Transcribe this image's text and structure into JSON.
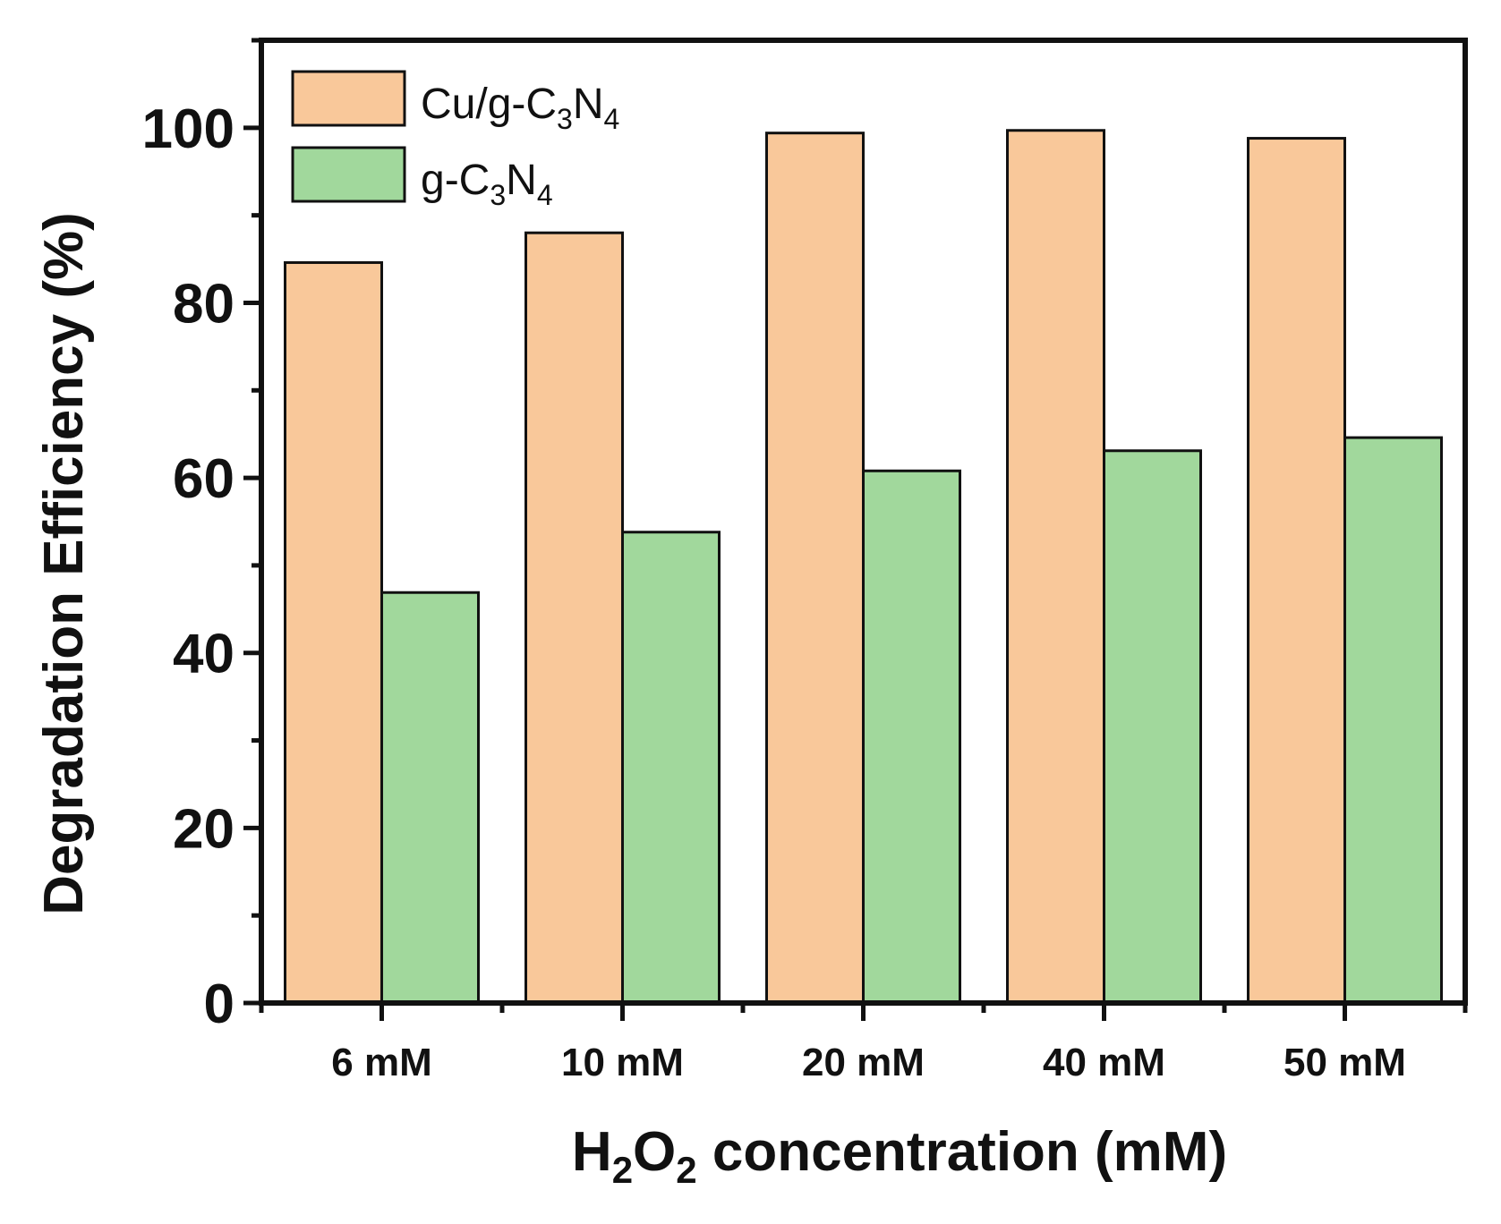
{
  "chart_data": {
    "type": "bar",
    "categories": [
      "6 mM",
      "10 mM",
      "20 mM",
      "40 mM",
      "50 mM"
    ],
    "series": [
      {
        "name": "Cu/g-C3N4",
        "name_parts": {
          "main": "Cu/g-C",
          "sub1": "3",
          "mid": "N",
          "sub2": "4"
        },
        "values": [
          84.6,
          88.0,
          99.4,
          99.7,
          98.8
        ],
        "color": "#F9C89A"
      },
      {
        "name": "g-C3N4",
        "name_parts": {
          "main": "g-C",
          "sub1": "3",
          "mid": "N",
          "sub2": "4"
        },
        "values": [
          46.9,
          53.8,
          60.8,
          63.1,
          64.6
        ],
        "color": "#A1D89C"
      }
    ],
    "xlabel": "H2O2 concentration (mM)",
    "xlabel_parts": {
      "a": "H",
      "sub1": "2",
      "b": "O",
      "sub2": "2",
      "c": " concentration (mM)"
    },
    "ylabel": "Degradation Efficiency (%)",
    "ylim": [
      0,
      110
    ],
    "yticks": [
      0,
      20,
      40,
      60,
      80,
      100
    ],
    "yticks_minor": [
      10,
      30,
      50,
      70,
      90,
      110
    ],
    "legend_position": "top-left",
    "grid": false,
    "bar_edge_color": "#111111"
  }
}
